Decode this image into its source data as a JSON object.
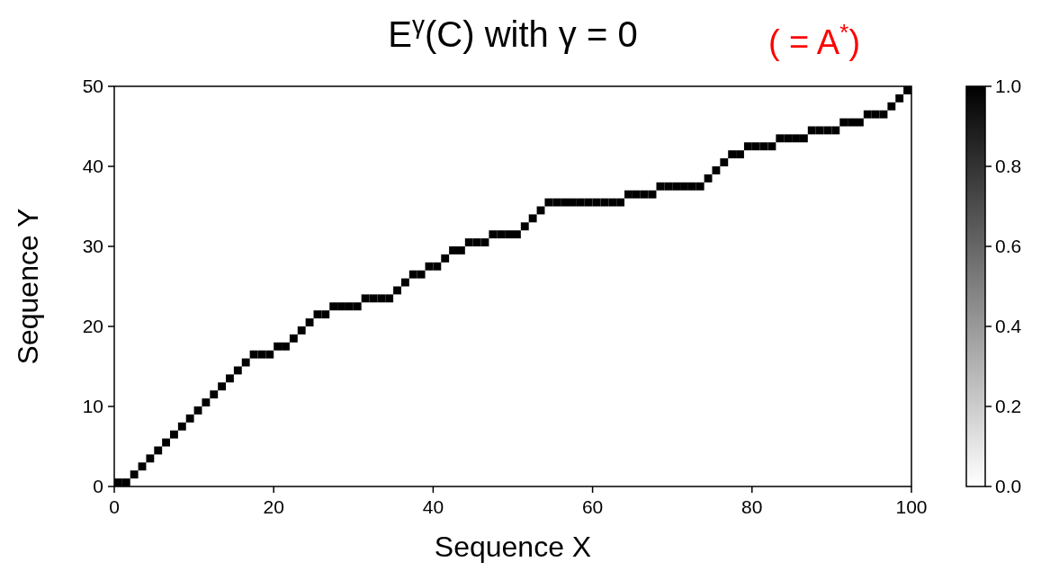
{
  "chart_data": {
    "type": "scatter",
    "title": "E$^{γ}$(C) with γ = 0",
    "annotations": [
      "( = A$^{*}$)"
    ],
    "xlabel": "Sequence  X",
    "ylabel": "Sequence  Y",
    "marker": "square",
    "grid": false,
    "xlim": [
      0,
      100
    ],
    "xticks": [
      0,
      20,
      40,
      60,
      80,
      100
    ],
    "ylim": [
      0,
      50
    ],
    "yticks": [
      0,
      10,
      20,
      30,
      40,
      50
    ],
    "clim": [
      0,
      1
    ],
    "cticks": [
      {
        "value": 0,
        "label": "0.0"
      },
      {
        "value": 0.2,
        "label": "0.2"
      },
      {
        "value": 0.4,
        "label": "0.4"
      },
      {
        "value": 0.6,
        "label": "0.6"
      },
      {
        "value": 0.8,
        "label": "0.8"
      },
      {
        "value": 1,
        "label": "1.0"
      }
    ],
    "x": [
      0.5,
      1.5,
      2.5,
      3.5,
      4.5,
      5.5,
      6.5,
      7.5,
      8.5,
      9.5,
      10.5,
      11.5,
      12.5,
      13.5,
      14.5,
      15.5,
      16.5,
      17.5,
      18.5,
      19.5,
      20.5,
      21.5,
      22.5,
      23.5,
      24.5,
      25.5,
      26.5,
      27.5,
      28.5,
      29.5,
      30.5,
      31.5,
      32.5,
      33.5,
      34.5,
      35.5,
      36.5,
      37.5,
      38.5,
      39.5,
      40.5,
      41.5,
      42.5,
      43.5,
      44.5,
      45.5,
      46.5,
      47.5,
      48.5,
      49.5,
      50.5,
      51.5,
      52.5,
      53.5,
      54.5,
      55.5,
      56.5,
      57.5,
      58.5,
      59.5,
      60.5,
      61.5,
      62.5,
      63.5,
      64.5,
      65.5,
      66.5,
      67.5,
      68.5,
      69.5,
      70.5,
      71.5,
      72.5,
      73.5,
      74.5,
      75.5,
      76.5,
      77.5,
      78.5,
      79.5,
      80.5,
      81.5,
      82.5,
      83.5,
      84.5,
      85.5,
      86.5,
      87.5,
      88.5,
      89.5,
      90.5,
      91.5,
      92.5,
      93.5,
      94.5,
      95.5,
      96.5,
      97.5,
      98.5,
      99.5
    ],
    "values": [
      0.5,
      0.5,
      1.5,
      2.5,
      3.5,
      4.5,
      5.5,
      6.5,
      7.5,
      8.5,
      9.5,
      10.5,
      11.5,
      12.5,
      13.5,
      14.5,
      15.5,
      16.5,
      16.5,
      16.5,
      17.5,
      17.5,
      18.5,
      19.5,
      20.5,
      21.5,
      21.5,
      22.5,
      22.5,
      22.5,
      22.5,
      23.5,
      23.5,
      23.5,
      23.5,
      24.5,
      25.5,
      26.5,
      26.5,
      27.5,
      27.5,
      28.5,
      29.5,
      29.5,
      30.5,
      30.5,
      30.5,
      31.5,
      31.5,
      31.5,
      31.5,
      32.5,
      33.5,
      34.5,
      35.5,
      35.5,
      35.5,
      35.5,
      35.5,
      35.5,
      35.5,
      35.5,
      35.5,
      35.5,
      36.5,
      36.5,
      36.5,
      36.5,
      37.5,
      37.5,
      37.5,
      37.5,
      37.5,
      37.5,
      38.5,
      39.5,
      40.5,
      41.5,
      41.5,
      42.5,
      42.5,
      42.5,
      42.5,
      43.5,
      43.5,
      43.5,
      43.5,
      44.5,
      44.5,
      44.5,
      44.5,
      45.5,
      45.5,
      45.5,
      46.5,
      46.5,
      46.5,
      47.5,
      48.5,
      49.5
    ],
    "cvalues": [
      1,
      1,
      1,
      1,
      1,
      1,
      1,
      1,
      1,
      1,
      1,
      1,
      1,
      1,
      1,
      1,
      1,
      1,
      1,
      1,
      1,
      1,
      1,
      1,
      1,
      1,
      1,
      1,
      1,
      1,
      1,
      1,
      1,
      1,
      1,
      1,
      1,
      1,
      1,
      1,
      1,
      1,
      1,
      1,
      1,
      1,
      1,
      1,
      1,
      1,
      1,
      1,
      1,
      1,
      1,
      1,
      1,
      1,
      1,
      1,
      1,
      1,
      1,
      1,
      1,
      1,
      1,
      1,
      1,
      1,
      1,
      1,
      1,
      1,
      1,
      1,
      1,
      1,
      1,
      1,
      1,
      1,
      1,
      1,
      1,
      1,
      1,
      1,
      1,
      1,
      1,
      1,
      1,
      1,
      1,
      1,
      1,
      1,
      1,
      1
    ]
  }
}
